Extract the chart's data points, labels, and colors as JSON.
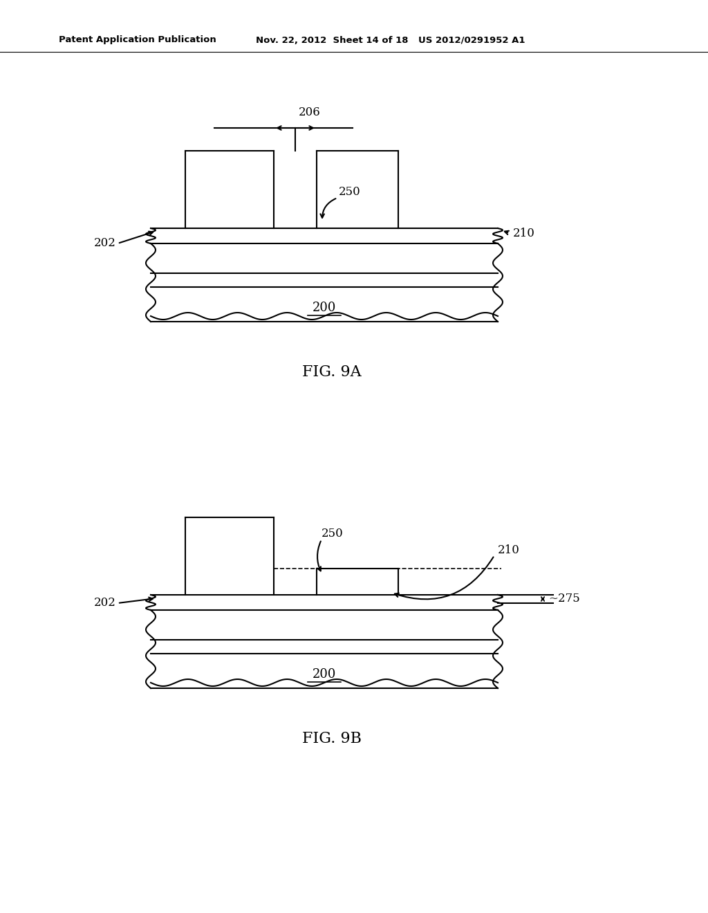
{
  "bg_color": "#ffffff",
  "line_color": "#000000",
  "fig_width": 10.24,
  "fig_height": 13.2,
  "header_left": "Patent Application Publication",
  "header_mid": "Nov. 22, 2012  Sheet 14 of 18",
  "header_right": "US 2012/0291952 A1",
  "fig9a_label": "FIG. 9A",
  "fig9b_label": "FIG. 9B"
}
